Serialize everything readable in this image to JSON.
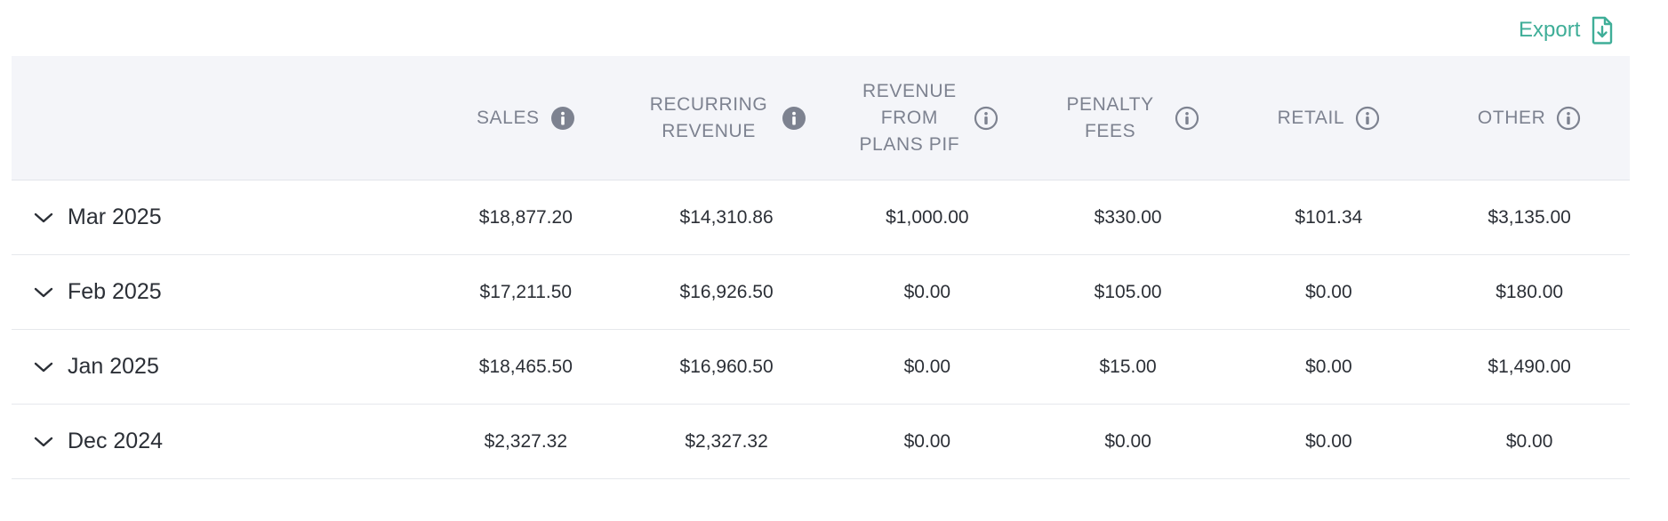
{
  "export": {
    "label": "Export",
    "icon": "file-download-icon",
    "color": "#3fae98"
  },
  "table": {
    "columns": [
      {
        "key": "sales",
        "label": "SALES",
        "info_style": "filled"
      },
      {
        "key": "recurring_revenue",
        "label": "RECURRING REVENUE",
        "info_style": "filled"
      },
      {
        "key": "revenue_from_plans_pif",
        "label": "REVENUE FROM PLANS PIF",
        "info_style": "outline"
      },
      {
        "key": "penalty_fees",
        "label": "PENALTY FEES",
        "info_style": "outline"
      },
      {
        "key": "retail",
        "label": "RETAIL",
        "info_style": "outline"
      },
      {
        "key": "other",
        "label": "OTHER",
        "info_style": "outline"
      }
    ],
    "rows": [
      {
        "month": "Mar 2025",
        "values": [
          "$18,877.20",
          "$14,310.86",
          "$1,000.00",
          "$330.00",
          "$101.34",
          "$3,135.00"
        ]
      },
      {
        "month": "Feb 2025",
        "values": [
          "$17,211.50",
          "$16,926.50",
          "$0.00",
          "$105.00",
          "$0.00",
          "$180.00"
        ]
      },
      {
        "month": "Jan 2025",
        "values": [
          "$18,465.50",
          "$16,960.50",
          "$0.00",
          "$15.00",
          "$0.00",
          "$1,490.00"
        ]
      },
      {
        "month": "Dec 2024",
        "values": [
          "$2,327.32",
          "$2,327.32",
          "$0.00",
          "$0.00",
          "$0.00",
          "$0.00"
        ]
      }
    ]
  },
  "colors": {
    "header_bg": "#f4f5f9",
    "header_text": "#7d8290",
    "info_icon": "#7d8290",
    "body_text": "#2b2f36",
    "divider": "#e6e8ec"
  }
}
